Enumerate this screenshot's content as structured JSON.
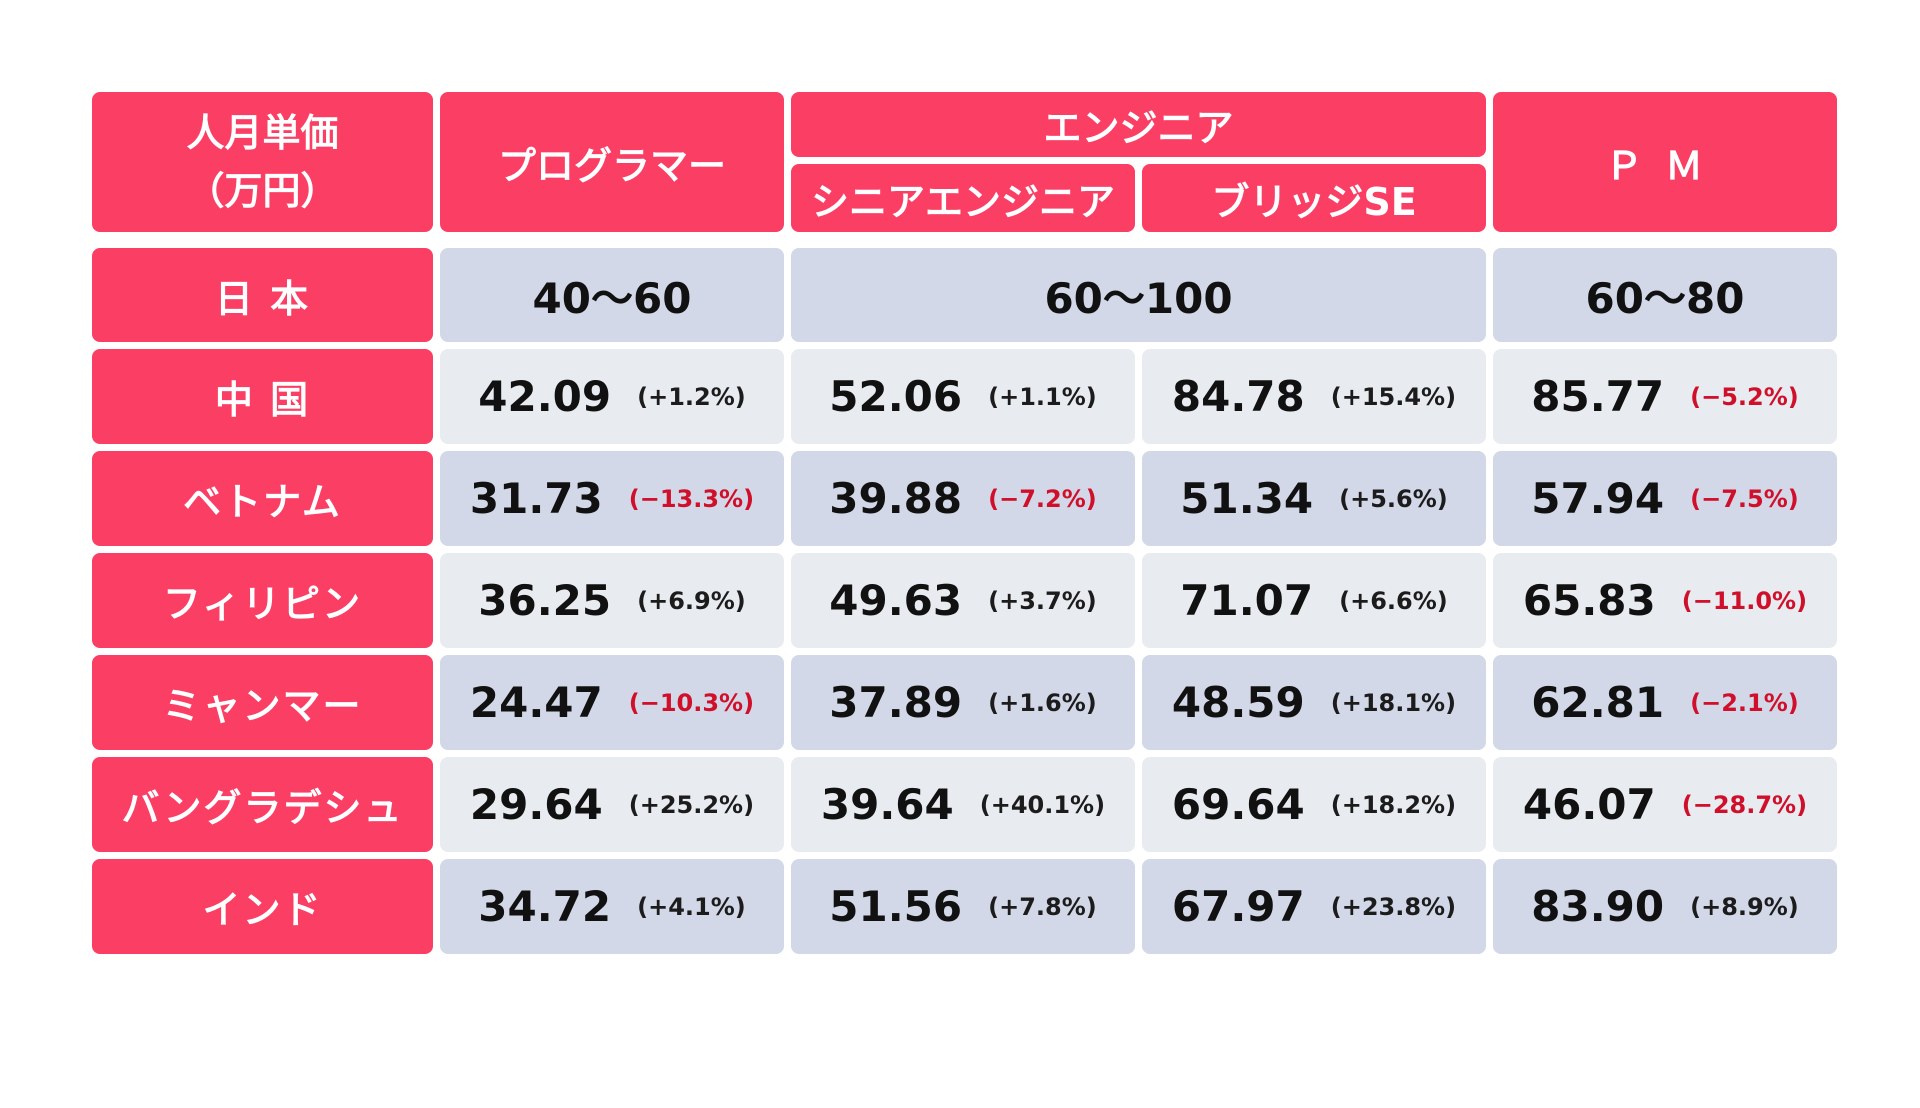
{
  "header": {
    "corner_line1": "人月単価",
    "corner_line2": "（万円）",
    "programmer": "プログラマー",
    "engineer": "エンジニア",
    "senior_engineer": "シニアエンジニア",
    "bridge_se": "ブリッジSE",
    "pm": "ＰＭ"
  },
  "japan": {
    "label": "日 本",
    "programmer": "40〜60",
    "engineer": "60〜100",
    "pm": "60〜80"
  },
  "rows": [
    {
      "label": "中 国",
      "programmer": {
        "value": "42.09",
        "change": "(+1.2%)"
      },
      "senior": {
        "value": "52.06",
        "change": "(+1.1%)"
      },
      "bridge": {
        "value": "84.78",
        "change": "(+15.4%)"
      },
      "pm": {
        "value": "85.77",
        "change": "(−5.2%)"
      }
    },
    {
      "label": "ベトナム",
      "programmer": {
        "value": "31.73",
        "change": "(−13.3%)"
      },
      "senior": {
        "value": "39.88",
        "change": "(−7.2%)"
      },
      "bridge": {
        "value": "51.34",
        "change": "(+5.6%)"
      },
      "pm": {
        "value": "57.94",
        "change": "(−7.5%)"
      }
    },
    {
      "label": "フィリピン",
      "programmer": {
        "value": "36.25",
        "change": "(+6.9%)"
      },
      "senior": {
        "value": "49.63",
        "change": "(+3.7%)"
      },
      "bridge": {
        "value": "71.07",
        "change": "(+6.6%)"
      },
      "pm": {
        "value": "65.83",
        "change": "(−11.0%)"
      }
    },
    {
      "label": "ミャンマー",
      "programmer": {
        "value": "24.47",
        "change": "(−10.3%)"
      },
      "senior": {
        "value": "37.89",
        "change": "(+1.6%)"
      },
      "bridge": {
        "value": "48.59",
        "change": "(+18.1%)"
      },
      "pm": {
        "value": "62.81",
        "change": "(−2.1%)"
      }
    },
    {
      "label": "バングラデシュ",
      "programmer": {
        "value": "29.64",
        "change": "(+25.2%)"
      },
      "senior": {
        "value": "39.64",
        "change": "(+40.1%)"
      },
      "bridge": {
        "value": "69.64",
        "change": "(+18.2%)"
      },
      "pm": {
        "value": "46.07",
        "change": "(−28.7%)"
      }
    },
    {
      "label": "インド",
      "programmer": {
        "value": "34.72",
        "change": "(+4.1%)"
      },
      "senior": {
        "value": "51.56",
        "change": "(+7.8%)"
      },
      "bridge": {
        "value": "67.97",
        "change": "(+23.8%)"
      },
      "pm": {
        "value": "83.90",
        "change": "(+8.9%)"
      }
    }
  ],
  "colors": {
    "header_bg": "#fb3e64",
    "cell_blue": "#d2d8e8",
    "cell_grey": "#e8ebf0",
    "negative": "#d0102a"
  }
}
